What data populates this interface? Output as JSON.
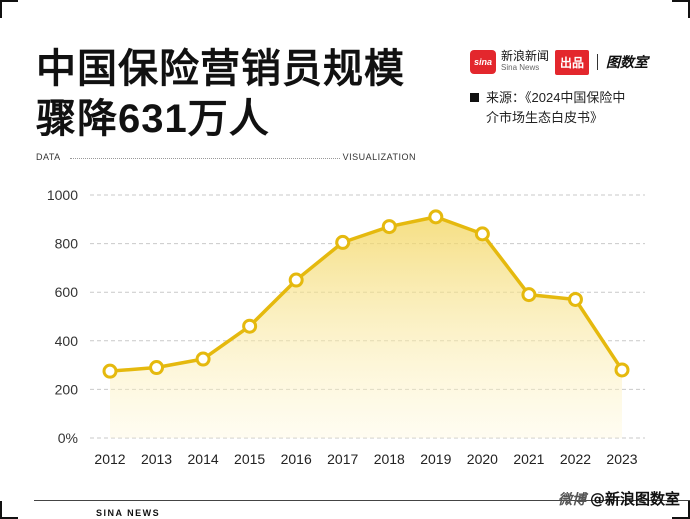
{
  "title_line1": "中国保险营销员规模",
  "title_line2": "骤降631万人",
  "brand": {
    "sina_logo_text": "sina",
    "sina_cn": "新浪新闻",
    "sina_en": "Sina News",
    "chupin": "出品",
    "tushi": "图数室"
  },
  "source": {
    "line1": "来源：《2024中国保险中",
    "line2": "介市场生态白皮书》"
  },
  "header_labels": {
    "left": "DATA",
    "right": "VISUALIZATION"
  },
  "footer": {
    "left": "SINA NEWS",
    "weibo": "微博",
    "right": "@新浪图数室"
  },
  "colors": {
    "line": "#e5b90e",
    "fill_top": "#f2d45a",
    "fill_bottom": "#fff8d8",
    "grid": "#c9c9c9"
  },
  "chart_data": {
    "type": "area",
    "title": "中国保险营销员规模骤降631万人",
    "x": [
      "2012",
      "2013",
      "2014",
      "2015",
      "2016",
      "2017",
      "2018",
      "2019",
      "2020",
      "2021",
      "2022",
      "2023"
    ],
    "values": [
      275,
      290,
      325,
      460,
      650,
      805,
      870,
      910,
      840,
      590,
      570,
      280
    ],
    "yticks": [
      "0%",
      "200",
      "400",
      "600",
      "800",
      "1000"
    ],
    "ylim": [
      0,
      1000
    ],
    "grid": true,
    "markers": true
  }
}
